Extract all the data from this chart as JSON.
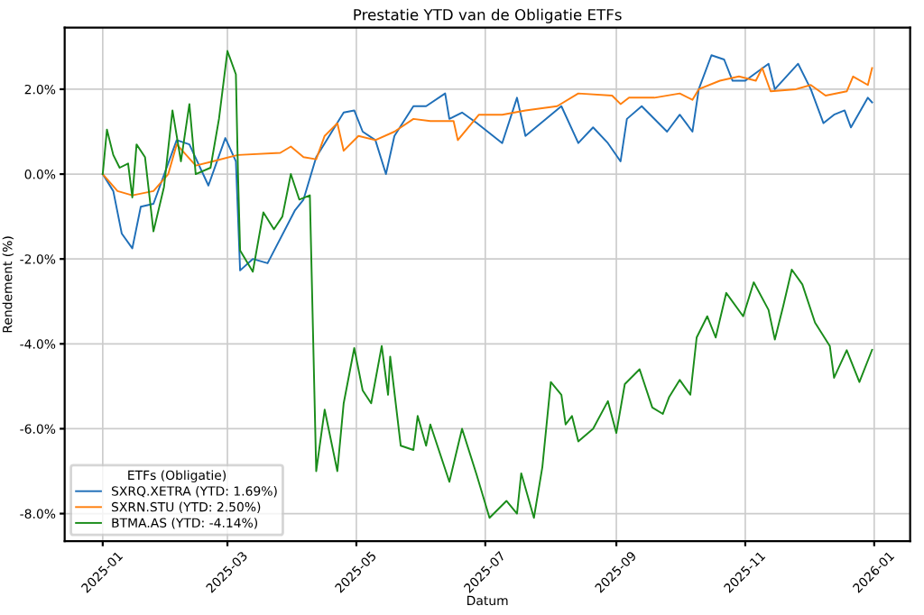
{
  "chart_data": {
    "type": "line",
    "title": "Prestatie YTD van de Obligatie ETFs",
    "xlabel": "Datum",
    "ylabel": "Rendement (%)",
    "legend_title": "ETFs (Obligatie)",
    "legend": "bottom left",
    "grid": true,
    "xlim": [
      "2024-12-14",
      "2026-01-18"
    ],
    "xticks": [
      {
        "value": "2025-01-01",
        "label": "2025-01"
      },
      {
        "value": "2025-03-01",
        "label": "2025-03"
      },
      {
        "value": "2025-05-01",
        "label": "2025-05"
      },
      {
        "value": "2025-07-01",
        "label": "2025-07"
      },
      {
        "value": "2025-09-01",
        "label": "2025-09"
      },
      {
        "value": "2025-11-01",
        "label": "2025-11"
      },
      {
        "value": "2026-01-01",
        "label": "2026-01"
      }
    ],
    "ylim": [
      -8.65,
      3.45
    ],
    "yticks": [
      {
        "value": -8,
        "label": "-8.0%"
      },
      {
        "value": -6,
        "label": "-6.0%"
      },
      {
        "value": -4,
        "label": "-4.0%"
      },
      {
        "value": -2,
        "label": "-2.0%"
      },
      {
        "value": 0,
        "label": "0.0%"
      },
      {
        "value": 2,
        "label": "2.0%"
      }
    ],
    "series": [
      {
        "name": "SXRQ.XETRA (YTD: 1.69%)",
        "color": "#1f6fb8",
        "x": [
          "2025-01-01",
          "2025-01-06",
          "2025-01-10",
          "2025-01-15",
          "2025-01-19",
          "2025-01-25",
          "2025-02-05",
          "2025-02-11",
          "2025-02-20",
          "2025-02-28",
          "2025-03-05",
          "2025-03-07",
          "2025-03-13",
          "2025-03-20",
          "2025-04-02",
          "2025-04-06",
          "2025-04-12",
          "2025-04-25",
          "2025-04-30",
          "2025-05-04",
          "2025-05-10",
          "2025-05-15",
          "2025-05-19",
          "2025-05-28",
          "2025-06-03",
          "2025-06-12",
          "2025-06-14",
          "2025-06-20",
          "2025-06-27",
          "2025-07-09",
          "2025-07-16",
          "2025-07-20",
          "2025-08-06",
          "2025-08-14",
          "2025-08-21",
          "2025-08-28",
          "2025-09-03",
          "2025-09-06",
          "2025-09-13",
          "2025-09-25",
          "2025-10-01",
          "2025-10-07",
          "2025-10-10",
          "2025-10-16",
          "2025-10-22",
          "2025-10-26",
          "2025-11-01",
          "2025-11-12",
          "2025-11-15",
          "2025-11-26",
          "2025-12-02",
          "2025-12-08",
          "2025-12-13",
          "2025-12-18",
          "2025-12-21",
          "2025-12-29",
          "2025-12-31"
        ],
        "values": [
          0,
          -0.4,
          -1.4,
          -1.75,
          -0.77,
          -0.7,
          0.8,
          0.7,
          -0.27,
          0.85,
          0.3,
          -2.27,
          -2.0,
          -2.1,
          -0.85,
          -0.6,
          0.4,
          1.45,
          1.5,
          1.0,
          0.8,
          0,
          0.9,
          1.6,
          1.6,
          1.9,
          1.3,
          1.45,
          1.2,
          0.73,
          1.8,
          0.9,
          1.6,
          0.73,
          1.1,
          0.73,
          0.3,
          1.3,
          1.6,
          1.0,
          1.4,
          1.0,
          2.0,
          2.8,
          2.7,
          2.2,
          2.2,
          2.6,
          2.0,
          2.6,
          2.0,
          1.2,
          1.4,
          1.5,
          1.1,
          1.8,
          1.69
        ]
      },
      {
        "name": "SXRN.STU (YTD: 2.50%)",
        "color": "#ff7f0e",
        "x": [
          "2025-01-01",
          "2025-01-08",
          "2025-01-15",
          "2025-01-25",
          "2025-02-01",
          "2025-02-05",
          "2025-02-14",
          "2025-02-22",
          "2025-03-06",
          "2025-03-26",
          "2025-03-31",
          "2025-04-06",
          "2025-04-12",
          "2025-04-16",
          "2025-04-22",
          "2025-04-25",
          "2025-05-02",
          "2025-05-10",
          "2025-05-19",
          "2025-05-28",
          "2025-06-05",
          "2025-06-16",
          "2025-06-18",
          "2025-06-28",
          "2025-07-09",
          "2025-07-20",
          "2025-08-04",
          "2025-08-14",
          "2025-08-30",
          "2025-09-03",
          "2025-09-07",
          "2025-09-19",
          "2025-10-01",
          "2025-10-07",
          "2025-10-10",
          "2025-10-20",
          "2025-10-29",
          "2025-11-06",
          "2025-11-09",
          "2025-11-13",
          "2025-11-25",
          "2025-12-02",
          "2025-12-09",
          "2025-12-19",
          "2025-12-22",
          "2025-12-29",
          "2025-12-31"
        ],
        "values": [
          0,
          -0.4,
          -0.5,
          -0.4,
          0,
          0.7,
          0.2,
          0.3,
          0.45,
          0.5,
          0.65,
          0.4,
          0.35,
          0.9,
          1.2,
          0.55,
          0.9,
          0.8,
          1.0,
          1.3,
          1.25,
          1.25,
          0.8,
          1.4,
          1.4,
          1.5,
          1.6,
          1.9,
          1.85,
          1.65,
          1.8,
          1.8,
          1.9,
          1.75,
          2.0,
          2.2,
          2.3,
          2.2,
          2.5,
          1.95,
          2.0,
          2.1,
          1.85,
          1.95,
          2.3,
          2.1,
          2.5
        ]
      },
      {
        "name": "BTMA.AS (YTD: -4.14%)",
        "color": "#1a8c1a",
        "x": [
          "2025-01-01",
          "2025-01-03",
          "2025-01-06",
          "2025-01-09",
          "2025-01-13",
          "2025-01-15",
          "2025-01-17",
          "2025-01-21",
          "2025-01-25",
          "2025-01-30",
          "2025-02-03",
          "2025-02-07",
          "2025-02-11",
          "2025-02-14",
          "2025-02-21",
          "2025-02-25",
          "2025-03-01",
          "2025-03-05",
          "2025-03-06",
          "2025-03-07",
          "2025-03-13",
          "2025-03-18",
          "2025-03-23",
          "2025-03-27",
          "2025-03-31",
          "2025-04-04",
          "2025-04-09",
          "2025-04-12",
          "2025-04-16",
          "2025-04-22",
          "2025-04-25",
          "2025-04-30",
          "2025-05-04",
          "2025-05-08",
          "2025-05-13",
          "2025-05-16",
          "2025-05-17",
          "2025-05-22",
          "2025-05-28",
          "2025-05-30",
          "2025-06-03",
          "2025-06-05",
          "2025-06-14",
          "2025-06-20",
          "2025-06-27",
          "2025-07-03",
          "2025-07-11",
          "2025-07-16",
          "2025-07-18",
          "2025-07-24",
          "2025-07-28",
          "2025-08-01",
          "2025-08-06",
          "2025-08-08",
          "2025-08-11",
          "2025-08-14",
          "2025-08-21",
          "2025-08-28",
          "2025-09-01",
          "2025-09-05",
          "2025-09-12",
          "2025-09-18",
          "2025-09-23",
          "2025-09-26",
          "2025-10-01",
          "2025-10-06",
          "2025-10-09",
          "2025-10-14",
          "2025-10-18",
          "2025-10-23",
          "2025-10-31",
          "2025-11-05",
          "2025-11-12",
          "2025-11-15",
          "2025-11-19",
          "2025-11-23",
          "2025-11-28",
          "2025-12-04",
          "2025-12-11",
          "2025-12-13",
          "2025-12-19",
          "2025-12-25",
          "2025-12-31"
        ],
        "values": [
          0,
          1.05,
          0.45,
          0.15,
          0.25,
          -0.55,
          0.7,
          0.4,
          -1.35,
          -0.3,
          1.5,
          0.3,
          1.65,
          0,
          0.15,
          1.3,
          2.9,
          2.35,
          0,
          -1.8,
          -2.3,
          -0.9,
          -1.3,
          -1.0,
          0,
          -0.6,
          -0.5,
          -7.0,
          -5.55,
          -7.0,
          -5.4,
          -4.1,
          -5.1,
          -5.4,
          -4.05,
          -5.2,
          -4.3,
          -6.4,
          -6.5,
          -5.7,
          -6.4,
          -5.9,
          -7.25,
          -6.0,
          -7.1,
          -8.1,
          -7.7,
          -8.0,
          -7.05,
          -8.1,
          -6.9,
          -4.9,
          -5.2,
          -5.9,
          -5.7,
          -6.3,
          -6.0,
          -5.35,
          -6.1,
          -4.95,
          -4.6,
          -5.5,
          -5.65,
          -5.25,
          -4.85,
          -5.2,
          -3.85,
          -3.35,
          -3.85,
          -2.8,
          -3.35,
          -2.55,
          -3.2,
          -3.9,
          -3.1,
          -2.25,
          -2.6,
          -3.5,
          -4.05,
          -4.8,
          -4.15,
          -4.9,
          -4.14
        ]
      }
    ]
  }
}
